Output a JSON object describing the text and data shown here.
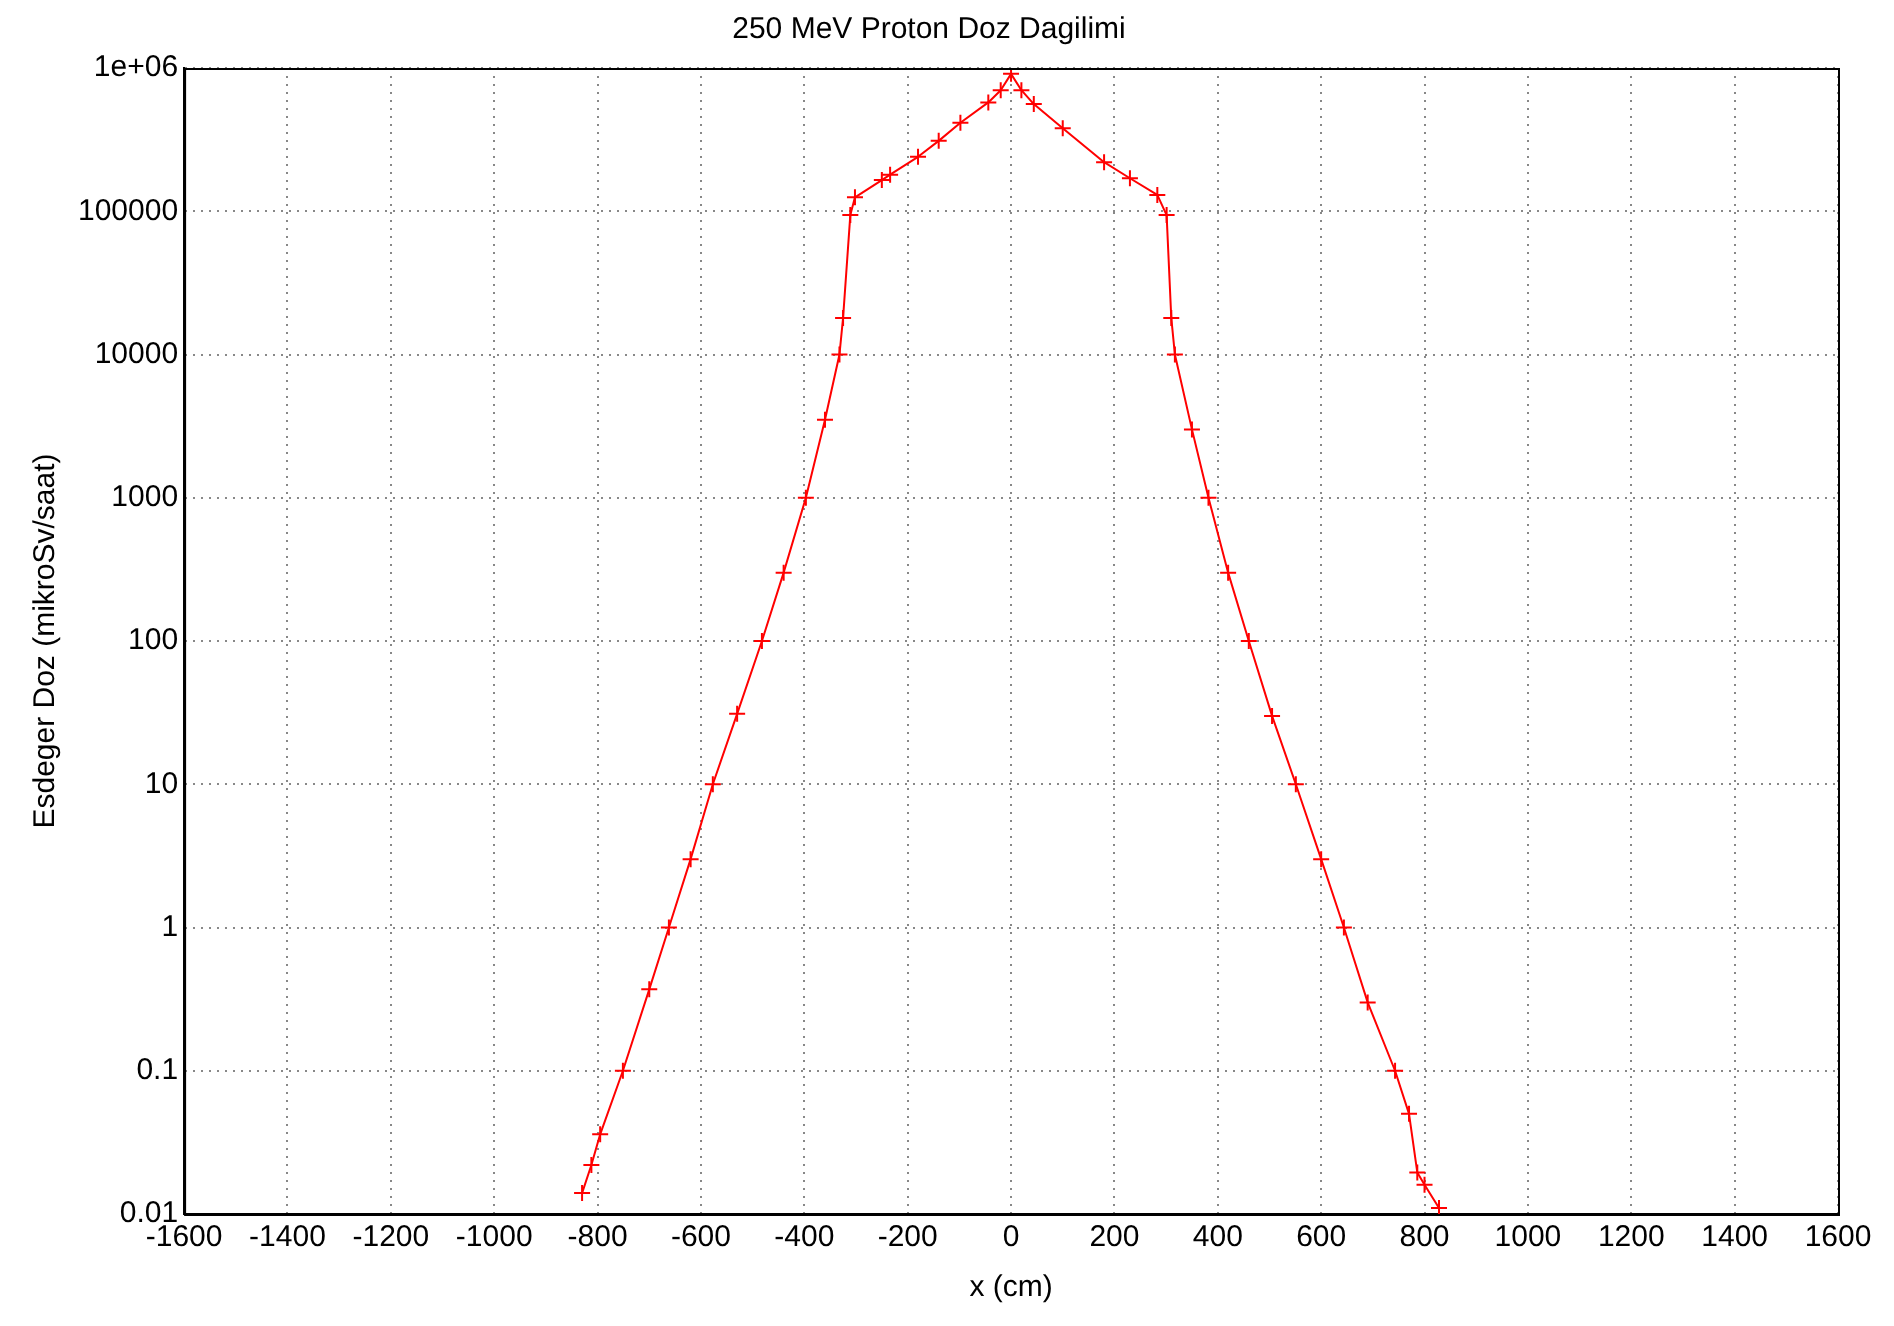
{
  "chart_data": {
    "type": "line",
    "title": "250 MeV Proton Doz Dagilimi",
    "xlabel": "x (cm)",
    "ylabel": "Esdeger Doz (mikroSv/saat)",
    "x": [
      -830,
      -812,
      -795,
      -751,
      -700,
      -662,
      -620,
      -577,
      -530,
      -482,
      -440,
      -397,
      -360,
      -332,
      -325,
      -311,
      -302,
      -250,
      -234,
      -180,
      -140,
      -98,
      -44,
      -20,
      0,
      20,
      44,
      100,
      180,
      230,
      283,
      301,
      310,
      317,
      350,
      382,
      420,
      460,
      505,
      551,
      600,
      644,
      690,
      743,
      770,
      786,
      800,
      828
    ],
    "series": [
      {
        "color": "#ff0000",
        "values": [
          0.014,
          0.022,
          0.036,
          0.1,
          0.37,
          1,
          3,
          10,
          31,
          100,
          300,
          1000,
          3500,
          10000,
          18000,
          94000,
          125000,
          165000,
          180000,
          240000,
          310000,
          415000,
          575000,
          700000,
          910000,
          700000,
          560000,
          380000,
          220000,
          170000,
          130000,
          94000,
          18000,
          10000,
          3000,
          1000,
          300,
          100,
          30,
          10,
          3,
          1,
          0.3,
          0.1,
          0.05,
          0.0195,
          0.016,
          0.011
        ]
      }
    ],
    "log": "y",
    "marker": "cross",
    "line_style": "solid",
    "grid": true,
    "legend": false,
    "xlim": [
      -1600,
      1600
    ],
    "xticks": [
      -1600,
      -1400,
      -1200,
      -1000,
      -800,
      -600,
      -400,
      -200,
      0,
      200,
      400,
      600,
      800,
      1000,
      1200,
      1400,
      1600
    ],
    "ylim": [
      0.01,
      1000000
    ],
    "yticks": [
      0.01,
      0.1,
      1,
      10,
      100,
      1000,
      10000,
      100000,
      {
        "value": 1000000,
        "label": "1e+06"
      }
    ]
  }
}
